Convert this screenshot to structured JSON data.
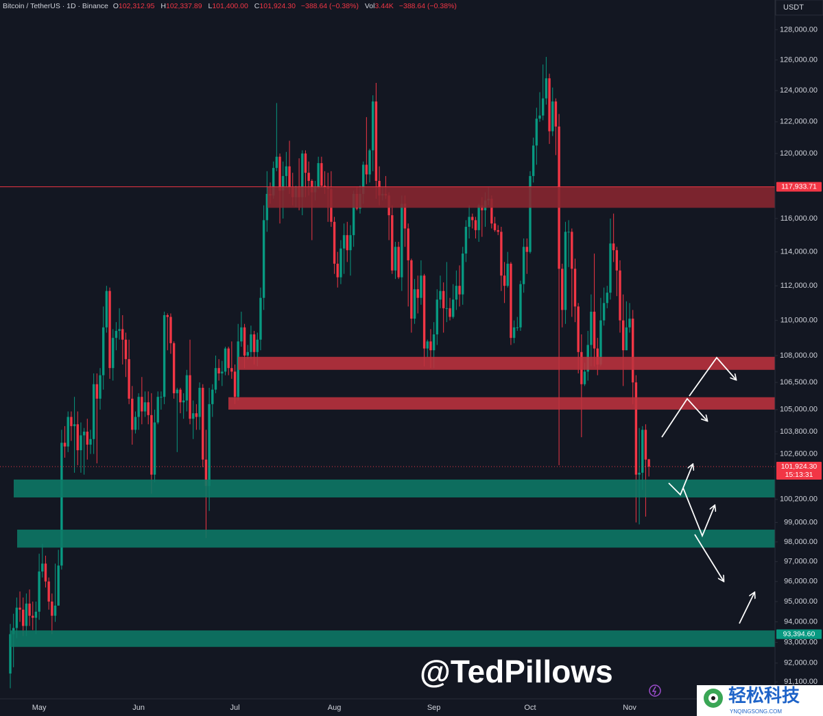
{
  "header": {
    "symbol": "Bitcoin / TetherUS · 1D · Binance",
    "o_label": "O",
    "open": "102,312.95",
    "h_label": "H",
    "high": "102,337.89",
    "l_label": "L",
    "low": "101,400.00",
    "c_label": "C",
    "close": "101,924.30",
    "change": "−388.64 (−0.38%)",
    "vol_label": "Vol",
    "volume": "3.44K",
    "vol_change": "−388.64 (−0.38%)",
    "currency": "USDT"
  },
  "chart_data": {
    "type": "candlestick",
    "log": true,
    "grid": false,
    "up_color": "#089981",
    "down_color": "#f23645",
    "ylim": [
      90300,
      130000
    ],
    "yticks": [
      {
        "value": 128000,
        "label": "128,000.00"
      },
      {
        "value": 126000,
        "label": "126,000.00"
      },
      {
        "value": 124000,
        "label": "124,000.00"
      },
      {
        "value": 122000,
        "label": "122,000.00"
      },
      {
        "value": 120000,
        "label": "120,000.00"
      },
      {
        "value": 116000,
        "label": "116,000.00"
      },
      {
        "value": 114000,
        "label": "114,000.00"
      },
      {
        "value": 112000,
        "label": "112,000.00"
      },
      {
        "value": 110000,
        "label": "110,000.00"
      },
      {
        "value": 108000,
        "label": "108,000.00"
      },
      {
        "value": 106500,
        "label": "106,500.00"
      },
      {
        "value": 105000,
        "label": "105,000.00"
      },
      {
        "value": 103800,
        "label": "103,800.00"
      },
      {
        "value": 102600,
        "label": "102,600.00"
      },
      {
        "value": 100200,
        "label": "100,200.00"
      },
      {
        "value": 99000,
        "label": "99,000.00"
      },
      {
        "value": 98000,
        "label": "98,000.00"
      },
      {
        "value": 97000,
        "label": "97,000.00"
      },
      {
        "value": 96000,
        "label": "96,000.00"
      },
      {
        "value": 95000,
        "label": "95,000.00"
      },
      {
        "value": 94000,
        "label": "94,000.00"
      },
      {
        "value": 93000,
        "label": "93,000.00"
      },
      {
        "value": 92000,
        "label": "92,000.00"
      },
      {
        "value": 91100,
        "label": "91,100.00"
      }
    ],
    "categories": [
      null,
      null,
      null,
      null,
      null,
      null,
      null,
      null,
      null,
      "May",
      null,
      null,
      null,
      null,
      null,
      null,
      null,
      null,
      null,
      null,
      null,
      null,
      null,
      null,
      null,
      null,
      null,
      null,
      null,
      null,
      null,
      null,
      null,
      null,
      null,
      null,
      null,
      null,
      null,
      null,
      "Jun",
      null,
      null,
      null,
      null,
      null,
      null,
      null,
      null,
      null,
      null,
      null,
      null,
      null,
      null,
      null,
      null,
      null,
      null,
      null,
      null,
      null,
      null,
      null,
      null,
      null,
      null,
      null,
      null,
      null,
      "Jul",
      null,
      null,
      null,
      null,
      null,
      null,
      null,
      null,
      null,
      null,
      null,
      null,
      null,
      null,
      null,
      null,
      null,
      null,
      null,
      null,
      null,
      null,
      null,
      null,
      null,
      null,
      null,
      null,
      null,
      null,
      "Aug",
      null,
      null,
      null,
      null,
      null,
      null,
      null,
      null,
      null,
      null,
      null,
      null,
      null,
      null,
      null,
      null,
      null,
      null,
      null,
      null,
      null,
      null,
      null,
      null,
      null,
      null,
      null,
      null,
      null,
      null,
      "Sep",
      null,
      null,
      null,
      null,
      null,
      null,
      null,
      null,
      null,
      null,
      null,
      null,
      null,
      null,
      null,
      null,
      null,
      null,
      null,
      null,
      null,
      null,
      null,
      null,
      null,
      null,
      null,
      null,
      null,
      "Oct",
      null,
      null,
      null,
      null,
      null,
      null,
      null,
      null,
      null,
      null,
      null,
      null,
      null,
      null,
      null,
      null,
      null,
      null,
      null,
      null,
      null,
      null,
      null,
      null,
      null,
      null,
      null,
      null,
      null,
      null,
      "Nov",
      null,
      null,
      null,
      null,
      null,
      null
    ],
    "open": [
      91500,
      93400,
      93700,
      94700,
      94600,
      93800,
      94900,
      94300,
      94200,
      94500,
      96500,
      96900,
      96000,
      95000,
      94300,
      94800,
      96800,
      103200,
      103000,
      104600,
      104100,
      104200,
      102800,
      103600,
      103800,
      103100,
      103400,
      106400,
      105600,
      106900,
      109600,
      111700,
      107300,
      109000,
      109400,
      109500,
      108900,
      107800,
      105600,
      103900,
      104600,
      105700,
      104900,
      105400,
      104700,
      101500,
      104300,
      105700,
      105700,
      110300,
      110200,
      108700,
      105900,
      106100,
      105400,
      105500,
      106900,
      104500,
      104800,
      104600,
      106200,
      102300,
      100900,
      105300,
      106100,
      107300,
      107000,
      107100,
      108400,
      107300,
      107100,
      105700,
      108800,
      109600,
      108000,
      108200,
      109200,
      108200,
      108900,
      111300,
      115900,
      117500,
      117400,
      119100,
      119800,
      117700,
      118600,
      119200,
      117900,
      117300,
      117900,
      117300,
      120000,
      118800,
      118300,
      117600,
      117900,
      119400,
      118000,
      117900,
      117800,
      115800,
      113300,
      112500,
      114200,
      115000,
      114100,
      115000,
      117500,
      116600,
      117500,
      119300,
      118700,
      120200,
      123300,
      118300,
      117400,
      117500,
      117400,
      116200,
      112900,
      114300,
      112500,
      116900,
      115400,
      113500,
      110100,
      111800,
      111300,
      112600,
      108400,
      108800,
      108300,
      109200,
      111200,
      111700,
      110700,
      110700,
      110200,
      111200,
      112000,
      111500,
      113900,
      115500,
      116100,
      115900,
      115300,
      116800,
      116500,
      117100,
      117200,
      115700,
      115300,
      115200,
      112600,
      112000,
      113300,
      109000,
      109600,
      109600,
      112100,
      114300,
      114000,
      118600,
      120500,
      122200,
      122400,
      123500,
      124800,
      121400,
      123300,
      121700,
      113000,
      110600,
      115200,
      115200,
      113000,
      110800,
      108200,
      106400,
      107100,
      108600,
      110500,
      108400,
      107500,
      110000,
      111000,
      111600,
      114500,
      114100,
      112900,
      110000,
      108300,
      109600,
      110100,
      106500,
      101500,
      101600,
      103900,
      102312.95
    ],
    "high": [
      93900,
      94400,
      95200,
      95500,
      95200,
      95400,
      95600,
      95000,
      95000,
      97400,
      97900,
      97300,
      96200,
      95400,
      96900,
      97600,
      103900,
      104100,
      104900,
      104900,
      105700,
      104900,
      104300,
      104000,
      104500,
      103900,
      107000,
      107000,
      107300,
      110800,
      112000,
      111900,
      109500,
      109900,
      110700,
      110300,
      109300,
      108900,
      106300,
      104900,
      105900,
      106800,
      106000,
      106000,
      105900,
      105000,
      106000,
      106000,
      110500,
      110400,
      110400,
      108800,
      106200,
      106200,
      105900,
      107200,
      108900,
      105500,
      105300,
      106500,
      106400,
      103900,
      106200,
      106400,
      108000,
      107800,
      107700,
      108500,
      108500,
      108800,
      107500,
      109800,
      110500,
      109800,
      108600,
      109700,
      109400,
      109300,
      111900,
      116800,
      118900,
      118200,
      119500,
      123200,
      120000,
      119500,
      120100,
      120800,
      118800,
      118000,
      119700,
      120200,
      120200,
      119500,
      118400,
      118300,
      119800,
      119800,
      118900,
      118800,
      118900,
      116100,
      114000,
      114700,
      115700,
      115800,
      115600,
      117700,
      117900,
      118000,
      119500,
      122300,
      120300,
      123700,
      124500,
      119200,
      117900,
      118600,
      117600,
      116800,
      114600,
      114600,
      117400,
      117400,
      115700,
      113600,
      112400,
      112600,
      113500,
      112700,
      108900,
      109500,
      109900,
      111800,
      112600,
      112200,
      113400,
      111300,
      112100,
      112900,
      113200,
      114300,
      115900,
      116800,
      116300,
      116100,
      116900,
      117300,
      117600,
      117900,
      117400,
      116100,
      115600,
      115500,
      113400,
      114000,
      113400,
      110000,
      110200,
      112300,
      114800,
      114800,
      118900,
      121000,
      122900,
      123900,
      125700,
      126200,
      125100,
      124200,
      123500,
      122500,
      113300,
      115800,
      115900,
      115400,
      113600,
      111000,
      109200,
      107600,
      109400,
      111500,
      113900,
      109000,
      111300,
      111900,
      112000,
      116000,
      116300,
      114300,
      113500,
      111500,
      111100,
      111000,
      110600,
      106900,
      104000,
      104100,
      104200,
      102337.89
    ],
    "low": [
      90800,
      91800,
      93200,
      94000,
      93300,
      93300,
      93800,
      93600,
      93400,
      94100,
      96200,
      95700,
      94600,
      93400,
      94000,
      94800,
      96600,
      102400,
      102700,
      103300,
      101600,
      102000,
      101600,
      101500,
      102300,
      102600,
      102600,
      102100,
      105000,
      106100,
      109300,
      106700,
      106600,
      108300,
      108900,
      107500,
      106800,
      105300,
      103100,
      103700,
      103900,
      104200,
      104600,
      104200,
      100500,
      101100,
      104200,
      105000,
      105300,
      108300,
      108100,
      105600,
      102700,
      104800,
      104500,
      104900,
      104200,
      103400,
      103900,
      103900,
      101900,
      98200,
      99600,
      104600,
      105900,
      106600,
      106300,
      106900,
      106900,
      106700,
      105300,
      105500,
      108500,
      107300,
      107800,
      107800,
      107500,
      107400,
      108300,
      110600,
      115200,
      116900,
      117200,
      118900,
      115700,
      116000,
      117900,
      117500,
      116800,
      116700,
      116500,
      116200,
      117300,
      117400,
      114700,
      117100,
      117800,
      117900,
      117500,
      115800,
      115500,
      112700,
      111900,
      112100,
      112700,
      113400,
      112600,
      114300,
      116500,
      116300,
      116900,
      118100,
      118200,
      118900,
      117200,
      116800,
      117100,
      117200,
      114700,
      112700,
      112400,
      112400,
      111700,
      114300,
      110800,
      109300,
      109800,
      110400,
      110900,
      107400,
      107900,
      107300,
      107300,
      108600,
      110700,
      109300,
      109900,
      110000,
      110100,
      110600,
      110800,
      110900,
      113400,
      114800,
      115400,
      114800,
      114600,
      114900,
      115500,
      116800,
      115400,
      115200,
      115000,
      111700,
      111000,
      111900,
      108600,
      108700,
      109400,
      109400,
      111600,
      112700,
      113900,
      118200,
      119300,
      122000,
      122100,
      123100,
      120600,
      121100,
      119900,
      102000,
      109600,
      109800,
      113100,
      110200,
      109900,
      107000,
      103500,
      106300,
      106600,
      107400,
      107400,
      106900,
      107400,
      109700,
      110700,
      111200,
      113400,
      111400,
      109300,
      106300,
      108300,
      109300,
      105300,
      99000,
      98900,
      100700,
      99300,
      101400
    ],
    "close": [
      93400,
      93700,
      94700,
      94600,
      93800,
      94900,
      94300,
      94200,
      94500,
      96500,
      96900,
      96000,
      95000,
      94300,
      94800,
      96800,
      103200,
      103000,
      104600,
      104100,
      104200,
      102800,
      103600,
      103800,
      103100,
      103400,
      106400,
      105600,
      106900,
      109600,
      111700,
      107300,
      109000,
      109400,
      109500,
      108900,
      107800,
      105600,
      103900,
      104600,
      105700,
      104900,
      105400,
      104700,
      101500,
      104300,
      105700,
      105700,
      110300,
      110200,
      108700,
      105900,
      106100,
      105400,
      105500,
      106900,
      104500,
      104800,
      104600,
      106200,
      102300,
      100900,
      105300,
      106100,
      107300,
      107000,
      107100,
      108400,
      107300,
      107100,
      105700,
      108800,
      109600,
      108000,
      108200,
      109200,
      108200,
      108900,
      111300,
      115900,
      117500,
      117400,
      119100,
      119800,
      117700,
      118600,
      119200,
      117900,
      117300,
      117900,
      117300,
      120000,
      118800,
      118300,
      117600,
      117900,
      119400,
      118000,
      117900,
      117800,
      115800,
      113300,
      112500,
      114200,
      115000,
      114100,
      115000,
      117500,
      116600,
      117500,
      119300,
      118700,
      120200,
      123300,
      118300,
      117400,
      117500,
      117400,
      116200,
      112900,
      114300,
      112500,
      116900,
      115400,
      113500,
      110100,
      111800,
      111300,
      112600,
      108400,
      108800,
      108300,
      109200,
      111200,
      111700,
      110700,
      110700,
      110200,
      111200,
      112000,
      111500,
      113900,
      115500,
      116100,
      115900,
      115300,
      116800,
      116500,
      117100,
      117200,
      115700,
      115300,
      115200,
      112600,
      112000,
      113300,
      109000,
      109600,
      109600,
      112100,
      114300,
      114000,
      118600,
      120500,
      122200,
      122400,
      123500,
      124800,
      121400,
      123300,
      121700,
      113000,
      110600,
      115200,
      115200,
      113000,
      110800,
      108200,
      106400,
      107100,
      108600,
      110500,
      108400,
      107500,
      110000,
      111000,
      111600,
      114500,
      114100,
      112900,
      110000,
      108300,
      109600,
      110100,
      106500,
      101500,
      101600,
      103900,
      102300,
      101924.3
    ],
    "zones": [
      {
        "low": 116650,
        "high": 117930,
        "color": "#8a2730"
      },
      {
        "low": 107200,
        "high": 107930,
        "color": "#bd323d"
      },
      {
        "low": 105000,
        "high": 105680,
        "color": "#bd323d"
      },
      {
        "low": 100300,
        "high": 101240,
        "color": "#0d7a66"
      },
      {
        "low": 97710,
        "high": 98630,
        "color": "#0d7a66"
      },
      {
        "low": 92780,
        "high": 93580,
        "color": "#0d7a66"
      }
    ],
    "price_lines": [
      {
        "value": 117933.71,
        "label": "117,933.71",
        "color": "#f23645",
        "style": "solid"
      },
      {
        "value": 101924.3,
        "label": "101,924.30",
        "sub": "15:13:31",
        "color": "#f23645",
        "style": "dotted"
      },
      {
        "value": 93394.6,
        "label": "93,394.60",
        "color": "#089981",
        "style": "none"
      }
    ],
    "watermark": "@TedPillows"
  },
  "logo": {
    "name": "轻松科技",
    "url": "YNQINGSONG.COM"
  }
}
